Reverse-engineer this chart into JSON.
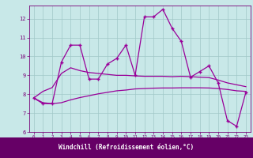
{
  "title": "",
  "xlabel": "Windchill (Refroidissement éolien,°C)",
  "xlim": [
    -0.5,
    23.5
  ],
  "ylim": [
    6,
    12.7
  ],
  "xticks": [
    0,
    1,
    2,
    3,
    4,
    5,
    6,
    7,
    8,
    9,
    10,
    11,
    12,
    13,
    14,
    15,
    16,
    17,
    18,
    19,
    20,
    21,
    22,
    23
  ],
  "yticks": [
    6,
    7,
    8,
    9,
    10,
    11,
    12
  ],
  "bg_color": "#c8e8e8",
  "plot_bg": "#c8e8e8",
  "line_color": "#990099",
  "grid_color": "#a0c8c8",
  "xlabel_bg": "#660066",
  "xlabel_fg": "#ffffff",
  "tick_color": "#770077",
  "series": [
    {
      "x": [
        0,
        1,
        2,
        3,
        4,
        5,
        6,
        7,
        8,
        9,
        10,
        11,
        12,
        13,
        14,
        15,
        16,
        17,
        18,
        19,
        20,
        21,
        22,
        23
      ],
      "y": [
        7.8,
        7.5,
        7.5,
        9.7,
        10.6,
        10.6,
        8.8,
        8.8,
        9.6,
        9.9,
        10.6,
        9.0,
        12.1,
        12.1,
        12.5,
        11.5,
        10.8,
        8.9,
        9.2,
        9.5,
        8.6,
        6.6,
        6.3,
        8.1
      ],
      "marker": true
    },
    {
      "x": [
        0,
        1,
        2,
        3,
        4,
        5,
        6,
        7,
        8,
        9,
        10,
        11,
        12,
        13,
        14,
        15,
        16,
        17,
        18,
        19,
        20,
        21,
        22,
        23
      ],
      "y": [
        7.8,
        8.15,
        8.35,
        9.1,
        9.4,
        9.25,
        9.15,
        9.1,
        9.05,
        9.0,
        9.0,
        8.97,
        8.95,
        8.95,
        8.95,
        8.93,
        8.95,
        8.93,
        8.9,
        8.88,
        8.75,
        8.6,
        8.5,
        8.4
      ],
      "marker": false
    },
    {
      "x": [
        0,
        1,
        2,
        3,
        4,
        5,
        6,
        7,
        8,
        9,
        10,
        11,
        12,
        13,
        14,
        15,
        16,
        17,
        18,
        19,
        20,
        21,
        22,
        23
      ],
      "y": [
        7.8,
        7.55,
        7.5,
        7.55,
        7.7,
        7.82,
        7.92,
        8.02,
        8.1,
        8.18,
        8.22,
        8.28,
        8.3,
        8.32,
        8.33,
        8.33,
        8.34,
        8.34,
        8.34,
        8.33,
        8.3,
        8.25,
        8.18,
        8.15
      ],
      "marker": false
    }
  ]
}
